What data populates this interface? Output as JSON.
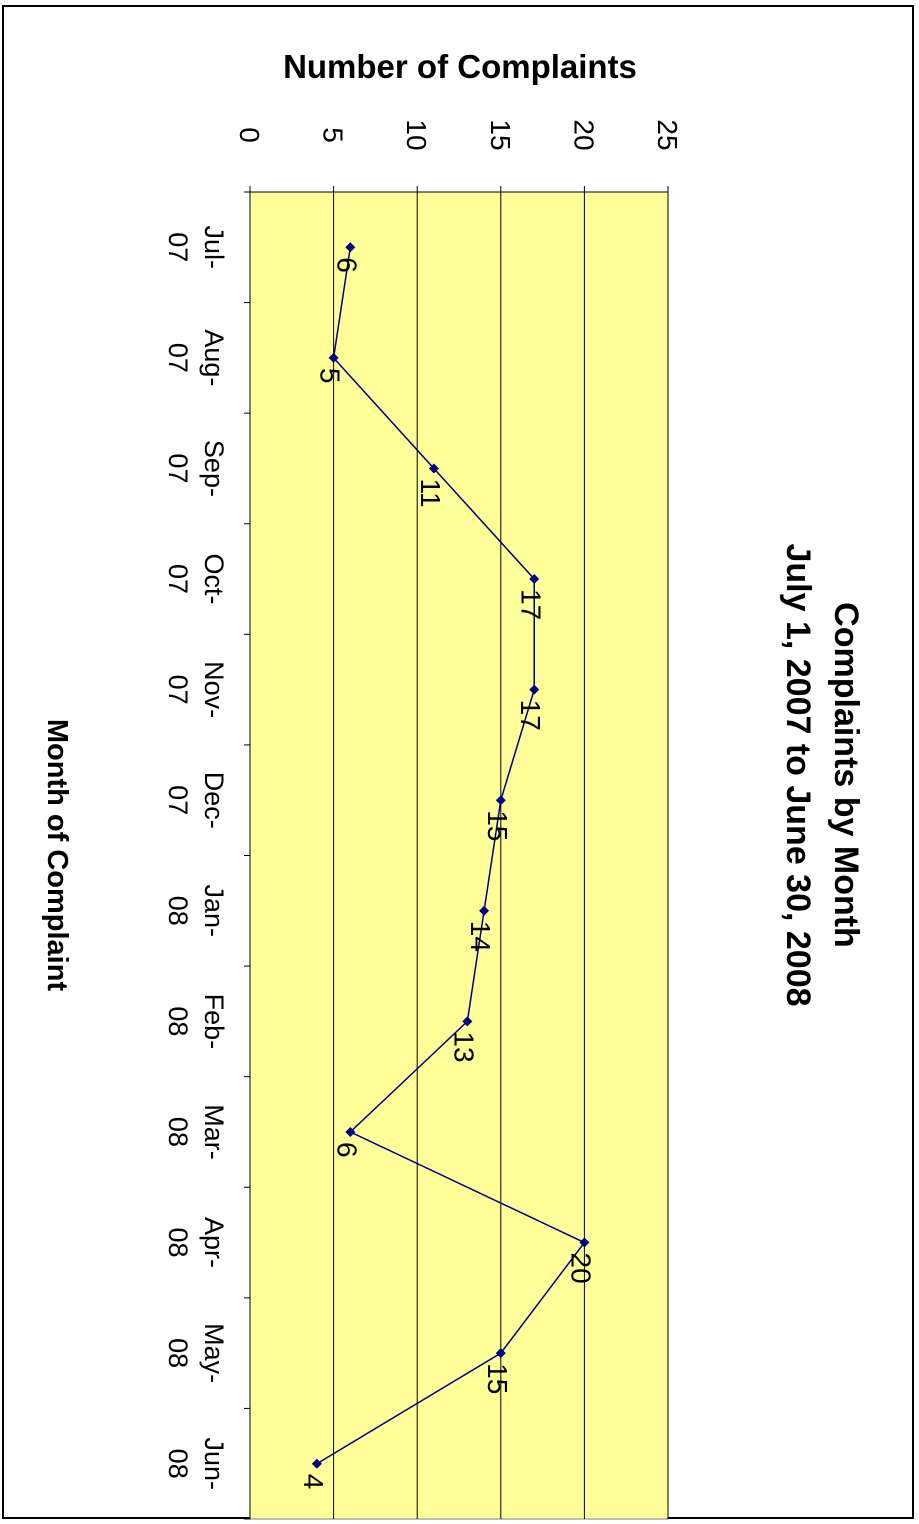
{
  "chart_data": {
    "type": "line",
    "title": [
      "Complaints by Month",
      "July 1, 2007 to June 30, 2008"
    ],
    "xlabel": "Month of Complaint",
    "ylabel": "Number of Complaints",
    "categories": [
      [
        "Jul-",
        "07"
      ],
      [
        "Aug-",
        "07"
      ],
      [
        "Sep-",
        "07"
      ],
      [
        "Oct-",
        "07"
      ],
      [
        "Nov-",
        "07"
      ],
      [
        "Dec-",
        "07"
      ],
      [
        "Jan-",
        "08"
      ],
      [
        "Feb-",
        "08"
      ],
      [
        "Mar-",
        "08"
      ],
      [
        "Apr-",
        "08"
      ],
      [
        "May-",
        "08"
      ],
      [
        "Jun-",
        "08"
      ]
    ],
    "series": [
      {
        "values": [
          6,
          5,
          11,
          17,
          17,
          15,
          14,
          13,
          6,
          20,
          15,
          4
        ]
      }
    ],
    "ylim": [
      0,
      25
    ],
    "yticks": [
      0,
      5,
      10,
      15,
      20,
      25
    ],
    "grid": true,
    "orientation": "rotated-90-clockwise",
    "colors": {
      "plot_bg": "#FFFF99",
      "line": "#000080",
      "marker": "#000080",
      "grid": "#000000"
    }
  }
}
